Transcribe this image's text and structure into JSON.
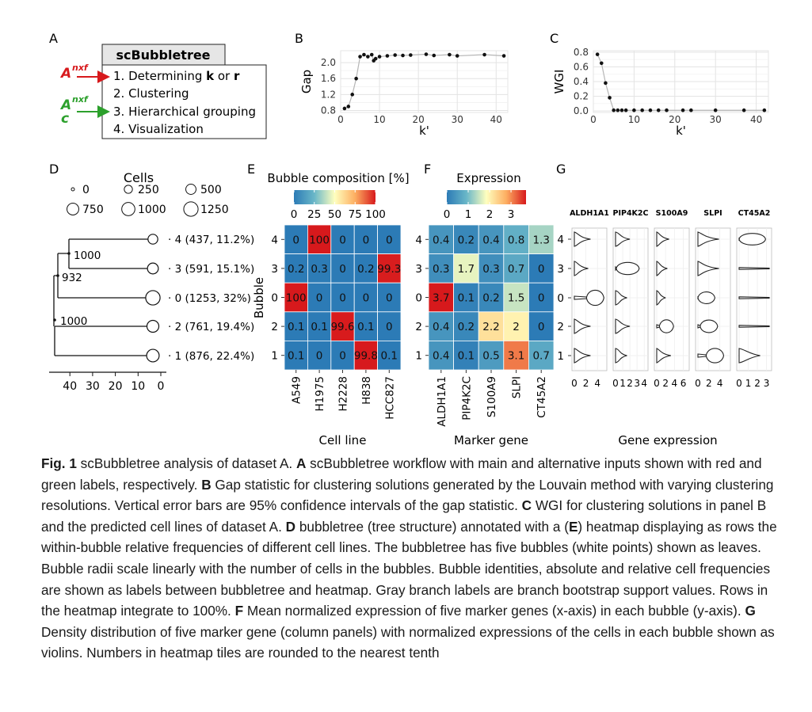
{
  "panel_letters": {
    "A": "A",
    "B": "B",
    "C": "C",
    "D": "D",
    "E": "E",
    "F": "F",
    "G": "G"
  },
  "workflow": {
    "title": "scBubbletree",
    "main_input": "A",
    "main_input_sup": "nxf",
    "alt_input": "A",
    "alt_input_sup": "nxf",
    "alt_input_sub": "c",
    "steps": [
      "1. Determining ",
      "2. Clustering",
      "3. Hierarchical grouping",
      "4. Visualization"
    ],
    "step1_k": "k",
    "step1_or": " or ",
    "step1_r": "r",
    "colors": {
      "main": "#d7191c",
      "alt": "#2ca02c"
    }
  },
  "chart_data": [
    {
      "type": "line",
      "panel": "B",
      "ylabel": "Gap",
      "xlabel": "k'",
      "xlim": [
        0,
        43
      ],
      "ylim": [
        0.75,
        2.3
      ],
      "xticks": [
        0,
        10,
        20,
        30,
        40
      ],
      "yticks": [
        0.8,
        1.2,
        1.6,
        2.0
      ],
      "ytick_labels": [
        "0.8",
        "1.2",
        "1.6",
        "2.0"
      ],
      "x": [
        1,
        2,
        3,
        4,
        5,
        6,
        7,
        8,
        8.5,
        9,
        10,
        12,
        14,
        16,
        18,
        22,
        24,
        28,
        30,
        37,
        42
      ],
      "y": [
        0.85,
        0.9,
        1.2,
        1.6,
        2.15,
        2.2,
        2.15,
        2.2,
        2.05,
        2.1,
        2.15,
        2.17,
        2.19,
        2.18,
        2.19,
        2.21,
        2.18,
        2.2,
        2.17,
        2.2,
        2.17
      ]
    },
    {
      "type": "line",
      "panel": "C",
      "ylabel": "WGI",
      "xlabel": "k'",
      "xlim": [
        0,
        43
      ],
      "ylim": [
        -0.02,
        0.82
      ],
      "xticks": [
        0,
        10,
        20,
        30,
        40
      ],
      "yticks": [
        0.0,
        0.2,
        0.4,
        0.6,
        0.8
      ],
      "ytick_labels": [
        "0.0",
        "0.2",
        "0.4",
        "0.6",
        "0.8"
      ],
      "x": [
        1,
        2,
        3,
        4,
        5,
        6,
        7,
        8,
        10,
        12,
        14,
        16,
        18,
        22,
        24,
        30,
        37,
        42
      ],
      "y": [
        0.77,
        0.65,
        0.38,
        0.18,
        0.01,
        0.01,
        0.01,
        0.01,
        0.01,
        0.01,
        0.01,
        0.01,
        0.01,
        0.01,
        0.01,
        0.01,
        0.01,
        0.01
      ]
    },
    {
      "type": "tree",
      "panel": "D",
      "legend_title": "Cells",
      "legend_sizes": [
        0,
        250,
        500,
        750,
        1000,
        1250
      ],
      "legend_labels": [
        "0",
        "250",
        "500",
        "750",
        "1000",
        "1250"
      ],
      "xticks": [
        40,
        30,
        20,
        10,
        0
      ],
      "xtick_labels": [
        "40",
        "30",
        "20",
        "10",
        "0"
      ],
      "leaves": [
        {
          "label": "4 (437, 11.2%)",
          "cells": 437
        },
        {
          "label": "3 (591, 15.1%)",
          "cells": 591
        },
        {
          "label": "0 (1253, 32%)",
          "cells": 1253
        },
        {
          "label": "2 (761, 19.4%)",
          "cells": 761
        },
        {
          "label": "1 (876, 22.4%)",
          "cells": 876
        }
      ],
      "branch_labels": [
        "1000",
        "932",
        "1000"
      ]
    },
    {
      "type": "heatmap",
      "panel": "E",
      "title": "Bubble composition [%]",
      "legend_ticks": [
        "0",
        "25",
        "50",
        "75",
        "100"
      ],
      "ylabel": "Bubble",
      "xlabel": "Cell line",
      "rows": [
        "4",
        "3",
        "0",
        "2",
        "1"
      ],
      "columns": [
        "A549",
        "H1975",
        "H2228",
        "H838",
        "HCC827"
      ],
      "values": [
        [
          0,
          100,
          0,
          0,
          0
        ],
        [
          0.2,
          0.3,
          0,
          0.2,
          99.3
        ],
        [
          100,
          0,
          0,
          0,
          0
        ],
        [
          0.1,
          0.1,
          99.6,
          0.1,
          0
        ],
        [
          0.1,
          0,
          0,
          99.8,
          0.1
        ]
      ],
      "labels": [
        [
          "0",
          "100",
          "0",
          "0",
          "0"
        ],
        [
          "0.2",
          "0.3",
          "0",
          "0.2",
          "99.3"
        ],
        [
          "100",
          "0",
          "0",
          "0",
          "0"
        ],
        [
          "0.1",
          "0.1",
          "99.6",
          "0.1",
          "0"
        ],
        [
          "0.1",
          "0",
          "0",
          "99.8",
          "0.1"
        ]
      ],
      "vmax": 100
    },
    {
      "type": "heatmap",
      "panel": "F",
      "title": "Expression",
      "legend_ticks": [
        "0",
        "1",
        "2",
        "3"
      ],
      "xlabel": "Marker gene",
      "rows": [
        "4",
        "3",
        "0",
        "2",
        "1"
      ],
      "columns": [
        "ALDH1A1",
        "PIP4K2C",
        "S100A9",
        "SLPI",
        "CT45A2"
      ],
      "values": [
        [
          0.4,
          0.2,
          0.4,
          0.8,
          1.3
        ],
        [
          0.3,
          1.7,
          0.3,
          0.7,
          0
        ],
        [
          3.7,
          0.1,
          0.2,
          1.5,
          0
        ],
        [
          0.4,
          0.2,
          2.2,
          2,
          0
        ],
        [
          0.4,
          0.1,
          0.5,
          3.1,
          0.7
        ]
      ],
      "labels": [
        [
          "0.4",
          "0.2",
          "0.4",
          "0.8",
          "1.3"
        ],
        [
          "0.3",
          "1.7",
          "0.3",
          "0.7",
          "0"
        ],
        [
          "3.7",
          "0.1",
          "0.2",
          "1.5",
          "0"
        ],
        [
          "0.4",
          "0.2",
          "2.2",
          "2",
          "0"
        ],
        [
          "0.4",
          "0.1",
          "0.5",
          "3.1",
          "0.7"
        ]
      ],
      "vmax": 3.7
    },
    {
      "type": "violin",
      "panel": "G",
      "xlabel": "Gene expression",
      "rows": [
        "4",
        "3",
        "0",
        "2",
        "1"
      ],
      "genes": [
        {
          "name": "ALDH1A1",
          "xticks": [
            "0",
            "2",
            "4"
          ],
          "xmax": 5.2
        },
        {
          "name": "PIP4K2C",
          "xticks": [
            "0",
            "1",
            "2",
            "3",
            "4"
          ],
          "xmax": 4.2
        },
        {
          "name": "S100A9",
          "xticks": [
            "0",
            "2",
            "4",
            "6"
          ],
          "xmax": 6.8
        },
        {
          "name": "SLPI",
          "xticks": [
            "0",
            "2",
            "4"
          ],
          "xmax": 5.5
        },
        {
          "name": "CT45A2",
          "xticks": [
            "0",
            "1",
            "2",
            "3"
          ],
          "xmax": 3.3
        }
      ],
      "means": [
        [
          0.4,
          0.2,
          0.4,
          0.8,
          1.3
        ],
        [
          0.3,
          1.7,
          0.3,
          0.7,
          0
        ],
        [
          3.7,
          0.1,
          0.2,
          1.5,
          0
        ],
        [
          0.4,
          0.2,
          2.2,
          2,
          0
        ],
        [
          0.4,
          0.1,
          0.5,
          3.1,
          0.7
        ]
      ]
    }
  ],
  "caption": {
    "fig_label": "Fig. 1",
    "parts": [
      {
        "b": "",
        "t": " scBubbletree analysis of dataset A. "
      },
      {
        "b": "A",
        "t": " scBubbletree workflow with main and alternative inputs shown with red and green labels, respectively. "
      },
      {
        "b": "B",
        "t": " Gap statistic for clustering solutions generated by the Louvain method with varying clustering resolutions. Vertical error bars are 95% confidence intervals of the gap statistic. "
      },
      {
        "b": "C",
        "t": " WGI for clustering solutions in panel B and the predicted cell lines of dataset A. "
      },
      {
        "b": "D",
        "t": " bubbletree (tree structure) annotated with a ("
      },
      {
        "b": "E",
        "t": ") heatmap displaying as rows the within-bubble relative frequencies of different cell lines. The bubbletree has five bubbles (white points) shown as leaves. Bubble radii scale linearly with the number of cells in the bubbles. Bubble identities, absolute and relative cell frequencies are shown as labels between bubbletree and heatmap. Gray branch labels are branch bootstrap support values. Rows in the heatmap integrate to 100%. "
      },
      {
        "b": "F",
        "t": " Mean normalized expression of five marker genes (x-axis) in each bubble (y-axis). "
      },
      {
        "b": "G",
        "t": " Density distribution of five marker gene (column panels) with normalized expressions of the cells in each bubble shown as violins. Numbers in heatmap tiles are rounded to the nearest tenth"
      }
    ]
  }
}
